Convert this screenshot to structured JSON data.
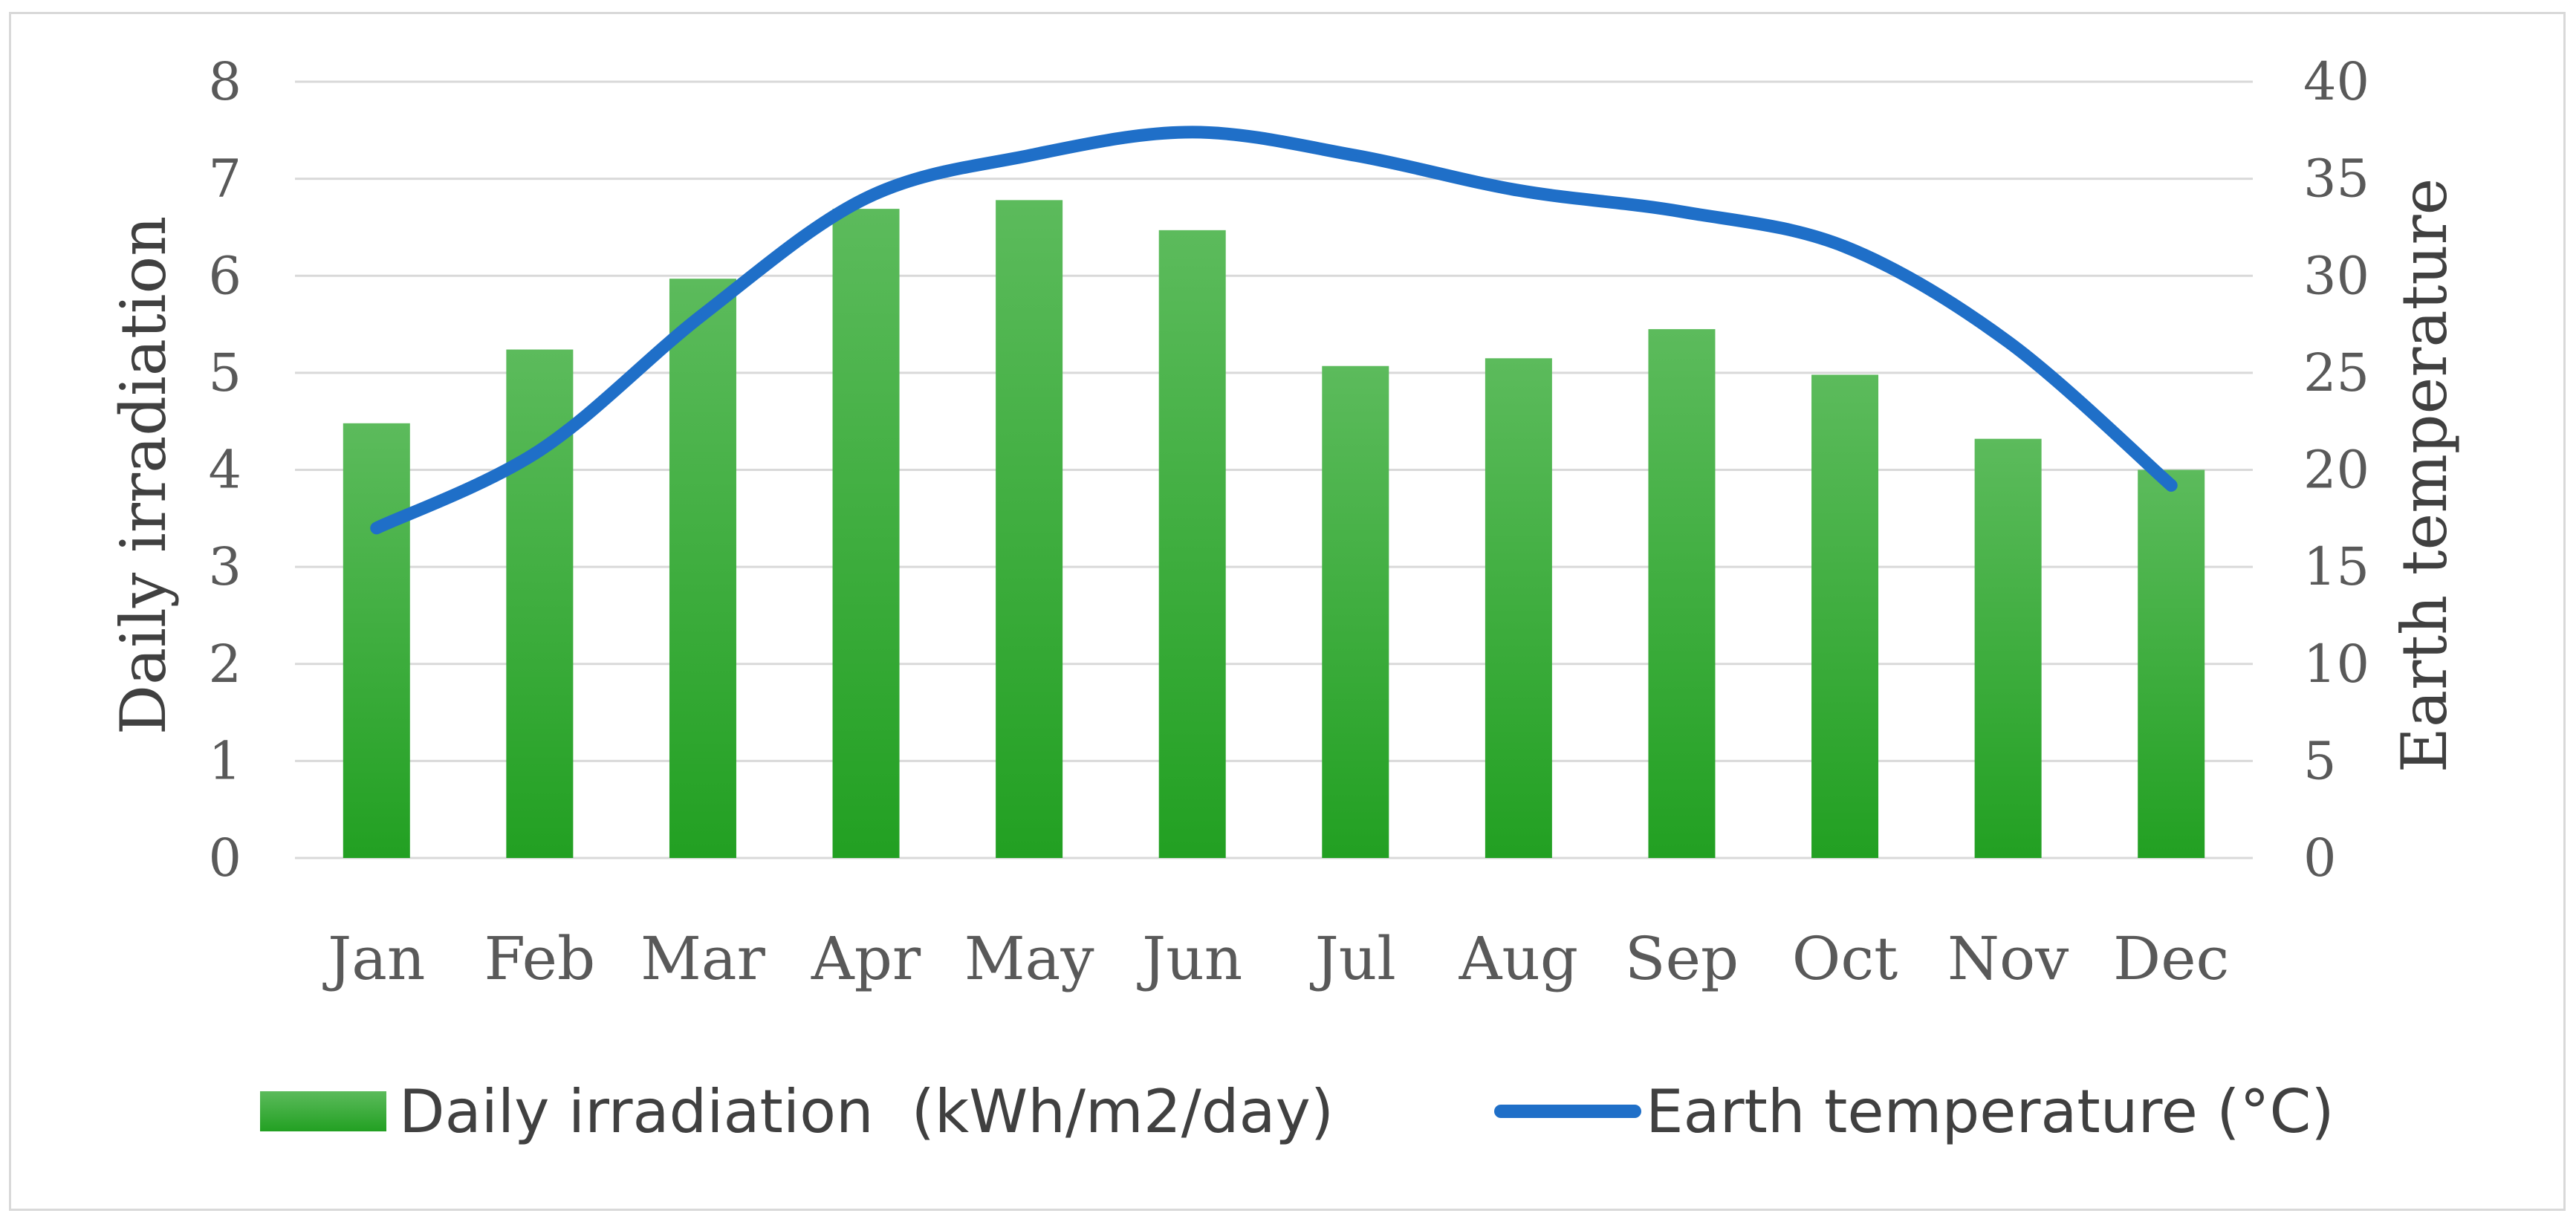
{
  "chart_data": {
    "type": "bar",
    "categories": [
      "Jan",
      "Feb",
      "Mar",
      "Apr",
      "May",
      "Jun",
      "Jul",
      "Aug",
      "Sep",
      "Oct",
      "Nov",
      "Dec"
    ],
    "series": [
      {
        "name": "Daily irradiation  (kWh/m2/day)",
        "type": "bar",
        "axis": "left",
        "color": "#2eaa2e",
        "values": [
          4.48,
          5.24,
          5.97,
          6.69,
          6.78,
          6.47,
          5.07,
          5.15,
          5.45,
          4.98,
          4.32,
          4.0
        ]
      },
      {
        "name": "Earth temperature (°C)",
        "type": "line",
        "axis": "right",
        "color": "#1f6fc8",
        "values": [
          17.0,
          21.0,
          28.0,
          34.0,
          36.2,
          37.4,
          36.2,
          34.4,
          33.3,
          31.5,
          26.6,
          19.2
        ]
      }
    ],
    "ylabel": "Daily irradiation",
    "ylabel_right": "Earth temperature",
    "ylim": [
      0,
      8
    ],
    "ylim_right": [
      0,
      40
    ],
    "yticks": [
      "0",
      "1",
      "2",
      "3",
      "4",
      "5",
      "6",
      "7",
      "8"
    ],
    "yticks_right": [
      "0",
      "5",
      "10",
      "15",
      "20",
      "25",
      "30",
      "35",
      "40"
    ],
    "grid": true,
    "legend_position": "bottom"
  }
}
